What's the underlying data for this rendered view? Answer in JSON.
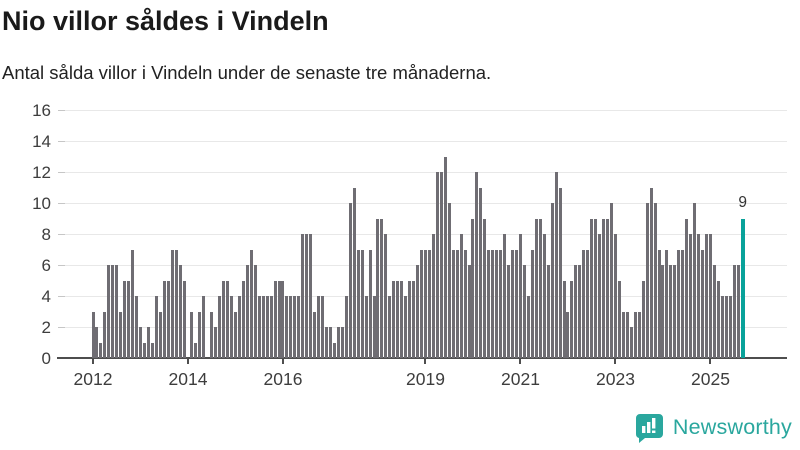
{
  "header": {
    "title": "Nio villor såldes i Vindeln",
    "subtitle": "Antal sålda villor i Vindeln under de senaste tre månaderna."
  },
  "annotation": {
    "last_value_label": "9"
  },
  "logo": {
    "text": "Newsworthy",
    "icon": "bar-chart-speech-bubble-icon"
  },
  "colors": {
    "bar": "#6f6d73",
    "highlight": "#09a29a",
    "title_text": "#1a1a1a",
    "tick_text": "#3d3d3d",
    "grid": "#e8e8e8",
    "axis": "#4e4e4e",
    "logo": "#2aa79e",
    "background": "#ffffff"
  },
  "chart_data": {
    "type": "bar",
    "title": "Nio villor såldes i Vindeln",
    "subtitle": "Antal sålda villor i Vindeln under de senaste tre månaderna.",
    "xlabel": "",
    "ylabel": "",
    "ylim": [
      0,
      16
    ],
    "y_ticks": [
      0,
      2,
      4,
      6,
      8,
      10,
      12,
      14,
      16
    ],
    "x_tick_labels": [
      "2012",
      "2014",
      "2016",
      "2019",
      "2021",
      "2023",
      "2025"
    ],
    "x_tick_years": [
      2012,
      2014,
      2016,
      2019,
      2021,
      2023,
      2025
    ],
    "start_month": "2012-01",
    "end_month": "2025-09",
    "grid": true,
    "legend_position": "none",
    "highlight_last_bar": true,
    "last_bar_value": 9,
    "values_by_year": {
      "2012": [
        3,
        2,
        1,
        3,
        6,
        6,
        6,
        3,
        5,
        5,
        7,
        4
      ],
      "2013": [
        2,
        1,
        2,
        1,
        4,
        3,
        5,
        5,
        7,
        7,
        6,
        5
      ],
      "2014": [
        0,
        3,
        1,
        3,
        4,
        0,
        3,
        2,
        4,
        5,
        5,
        4
      ],
      "2015": [
        3,
        4,
        5,
        6,
        7,
        6,
        4,
        4,
        4,
        4,
        5,
        5
      ],
      "2016": [
        5,
        4,
        4,
        4,
        4,
        8,
        8,
        8,
        3,
        4,
        4,
        2
      ],
      "2017": [
        2,
        1,
        2,
        2,
        4,
        10,
        11,
        7,
        7,
        4,
        7,
        4
      ],
      "2018": [
        9,
        9,
        8,
        4,
        5,
        5,
        5,
        4,
        5,
        5,
        6,
        7
      ],
      "2019": [
        7,
        7,
        8,
        12,
        12,
        13,
        10,
        7,
        7,
        8,
        7,
        6
      ],
      "2020": [
        9,
        12,
        11,
        9,
        7,
        7,
        7,
        7,
        8,
        6,
        7,
        7
      ],
      "2021": [
        8,
        6,
        4,
        7,
        9,
        9,
        8,
        6,
        10,
        12,
        11,
        5
      ],
      "2022": [
        3,
        5,
        6,
        6,
        7,
        7,
        9,
        9,
        8,
        9,
        9,
        10
      ],
      "2023": [
        8,
        5,
        3,
        3,
        2,
        3,
        3,
        5,
        10,
        11,
        10,
        7
      ],
      "2024": [
        6,
        7,
        6,
        6,
        7,
        7,
        9,
        8,
        10,
        8,
        7,
        8
      ],
      "2025": [
        8,
        6,
        5,
        4,
        4,
        4,
        6,
        6,
        9
      ]
    }
  }
}
